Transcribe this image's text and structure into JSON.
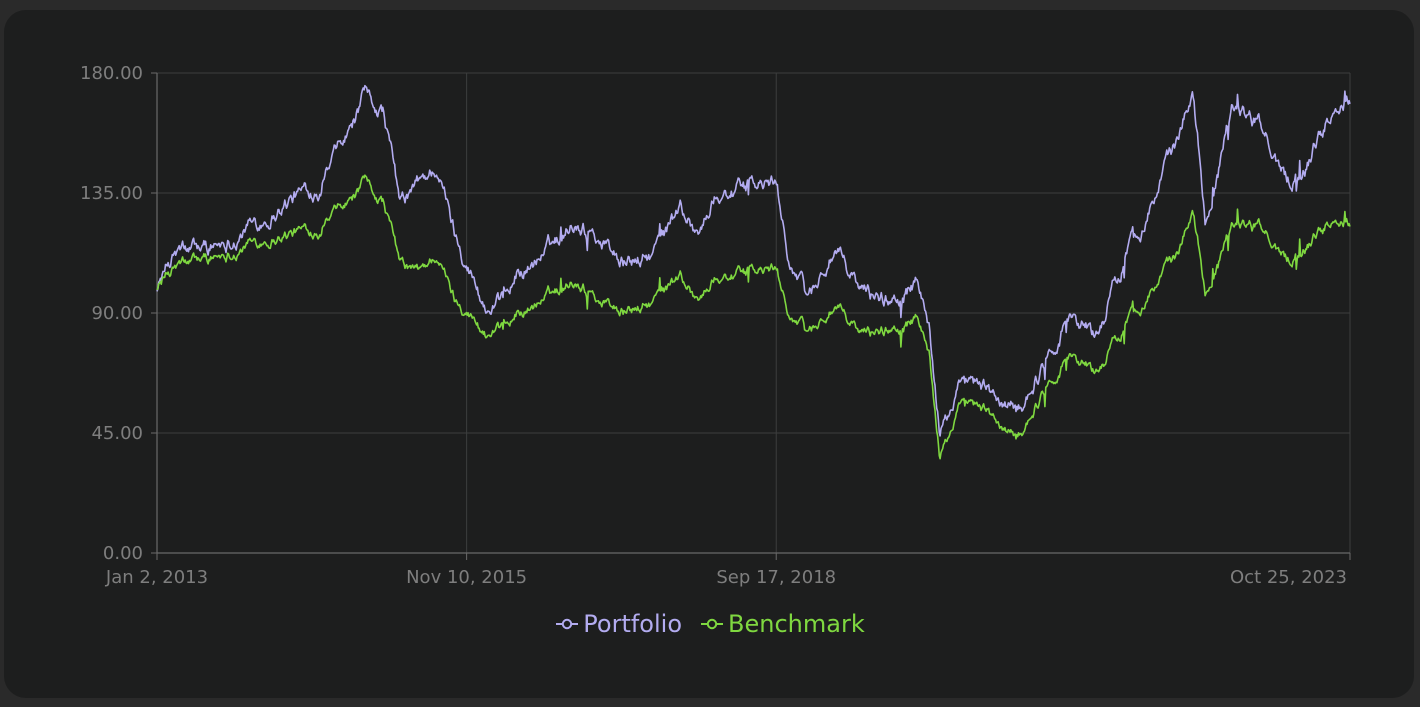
{
  "chart_data": {
    "type": "line",
    "title": "",
    "xlabel": "",
    "ylabel": "",
    "x_ticks": [
      "Jan 2, 2013",
      "Nov 10, 2015",
      "Sep 17, 2018",
      "Oct 25, 2023"
    ],
    "y_ticks": [
      "0.00",
      "45.00",
      "90.00",
      "135.00",
      "180.00"
    ],
    "ylim": [
      0,
      180
    ],
    "xlim": [
      "2013-01-02",
      "2023-12-31"
    ],
    "grid": true,
    "legend_position": "bottom",
    "series": [
      {
        "name": "Portfolio",
        "color": "#b3acf0",
        "points": [
          [
            "2013-01-02",
            100
          ],
          [
            "2013-03-01",
            112
          ],
          [
            "2013-06-01",
            114
          ],
          [
            "2013-09-01",
            118
          ],
          [
            "2014-01-01",
            126
          ],
          [
            "2014-04-01",
            133
          ],
          [
            "2014-07-01",
            138
          ],
          [
            "2014-10-01",
            155
          ],
          [
            "2014-12-01",
            170
          ],
          [
            "2015-02-01",
            166
          ],
          [
            "2015-04-01",
            130
          ],
          [
            "2015-06-01",
            138
          ],
          [
            "2015-08-01",
            145
          ],
          [
            "2015-10-01",
            120
          ],
          [
            "2015-11-10",
            110
          ],
          [
            "2016-02-01",
            85
          ],
          [
            "2016-05-01",
            105
          ],
          [
            "2016-08-01",
            112
          ],
          [
            "2016-11-01",
            125
          ],
          [
            "2017-02-01",
            118
          ],
          [
            "2017-05-01",
            108
          ],
          [
            "2017-08-01",
            112
          ],
          [
            "2017-11-01",
            130
          ],
          [
            "2018-01-01",
            120
          ],
          [
            "2018-03-01",
            135
          ],
          [
            "2018-06-01",
            137
          ],
          [
            "2018-09-17",
            138
          ],
          [
            "2018-11-01",
            110
          ],
          [
            "2019-01-01",
            95
          ],
          [
            "2019-04-01",
            113
          ],
          [
            "2019-07-01",
            98
          ],
          [
            "2019-10-01",
            95
          ],
          [
            "2020-01-01",
            100
          ],
          [
            "2020-02-15",
            85
          ],
          [
            "2020-03-20",
            45
          ],
          [
            "2020-06-01",
            62
          ],
          [
            "2020-09-01",
            60
          ],
          [
            "2020-12-01",
            52
          ],
          [
            "2021-03-01",
            70
          ],
          [
            "2021-06-01",
            90
          ],
          [
            "2021-09-01",
            82
          ],
          [
            "2021-12-01",
            110
          ],
          [
            "2022-03-01",
            130
          ],
          [
            "2022-06-01",
            155
          ],
          [
            "2022-07-20",
            175
          ],
          [
            "2022-09-01",
            125
          ],
          [
            "2022-12-01",
            170
          ],
          [
            "2023-03-01",
            160
          ],
          [
            "2023-06-01",
            140
          ],
          [
            "2023-08-01",
            145
          ],
          [
            "2023-10-25",
            165
          ],
          [
            "2023-12-31",
            172
          ]
        ]
      },
      {
        "name": "Benchmark",
        "color": "#7fd840",
        "points": [
          [
            "2013-01-02",
            100
          ],
          [
            "2013-03-01",
            107
          ],
          [
            "2013-06-01",
            110
          ],
          [
            "2013-09-01",
            113
          ],
          [
            "2014-01-01",
            118
          ],
          [
            "2014-04-01",
            120
          ],
          [
            "2014-07-01",
            122
          ],
          [
            "2014-10-01",
            130
          ],
          [
            "2014-12-01",
            138
          ],
          [
            "2015-02-01",
            132
          ],
          [
            "2015-04-01",
            108
          ],
          [
            "2015-06-01",
            105
          ],
          [
            "2015-08-01",
            112
          ],
          [
            "2015-10-01",
            95
          ],
          [
            "2015-11-10",
            92
          ],
          [
            "2016-02-01",
            78
          ],
          [
            "2016-05-01",
            90
          ],
          [
            "2016-08-01",
            95
          ],
          [
            "2016-11-01",
            103
          ],
          [
            "2017-02-01",
            95
          ],
          [
            "2017-05-01",
            90
          ],
          [
            "2017-08-01",
            94
          ],
          [
            "2017-11-01",
            104
          ],
          [
            "2018-01-01",
            95
          ],
          [
            "2018-03-01",
            104
          ],
          [
            "2018-06-01",
            105
          ],
          [
            "2018-09-17",
            106
          ],
          [
            "2018-11-01",
            90
          ],
          [
            "2019-01-01",
            82
          ],
          [
            "2019-04-01",
            92
          ],
          [
            "2019-07-01",
            82
          ],
          [
            "2019-10-01",
            84
          ],
          [
            "2020-01-01",
            87
          ],
          [
            "2020-02-15",
            75
          ],
          [
            "2020-03-20",
            36
          ],
          [
            "2020-06-01",
            55
          ],
          [
            "2020-09-01",
            52
          ],
          [
            "2020-12-01",
            42
          ],
          [
            "2021-03-01",
            60
          ],
          [
            "2021-06-01",
            75
          ],
          [
            "2021-09-01",
            68
          ],
          [
            "2021-12-01",
            85
          ],
          [
            "2022-03-01",
            98
          ],
          [
            "2022-06-01",
            112
          ],
          [
            "2022-07-20",
            130
          ],
          [
            "2022-09-01",
            98
          ],
          [
            "2022-12-01",
            125
          ],
          [
            "2023-03-01",
            122
          ],
          [
            "2023-06-01",
            110
          ],
          [
            "2023-08-01",
            115
          ],
          [
            "2023-10-25",
            125
          ],
          [
            "2023-12-31",
            125
          ]
        ]
      }
    ]
  }
}
